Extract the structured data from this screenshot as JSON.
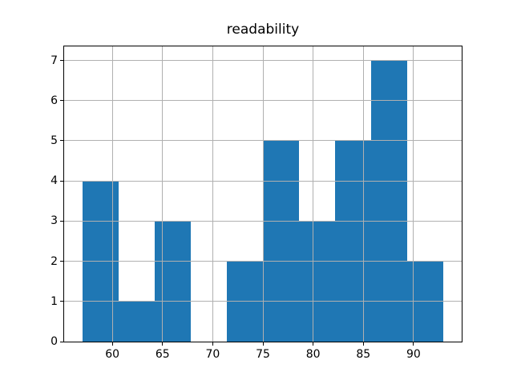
{
  "chart_data": {
    "type": "bar",
    "subtype": "histogram",
    "title": "readability",
    "xlabel": "",
    "ylabel": "",
    "bin_edges": [
      57.0,
      60.6,
      64.2,
      67.8,
      71.4,
      75.0,
      78.6,
      82.2,
      85.8,
      89.4,
      93.0
    ],
    "counts": [
      4,
      1,
      3,
      0,
      2,
      5,
      3,
      5,
      7,
      2
    ],
    "x_ticks": [
      60,
      65,
      70,
      75,
      80,
      85,
      90
    ],
    "y_ticks": [
      0,
      1,
      2,
      3,
      4,
      5,
      6,
      7
    ],
    "xlim": [
      55.2,
      94.8
    ],
    "ylim": [
      0,
      7.35
    ],
    "grid": true,
    "legend": "none",
    "colors": {
      "bar": "#1f77b4",
      "grid": "#b0b0b0",
      "spine": "#000000",
      "text": "#000000",
      "background": "#ffffff"
    }
  }
}
